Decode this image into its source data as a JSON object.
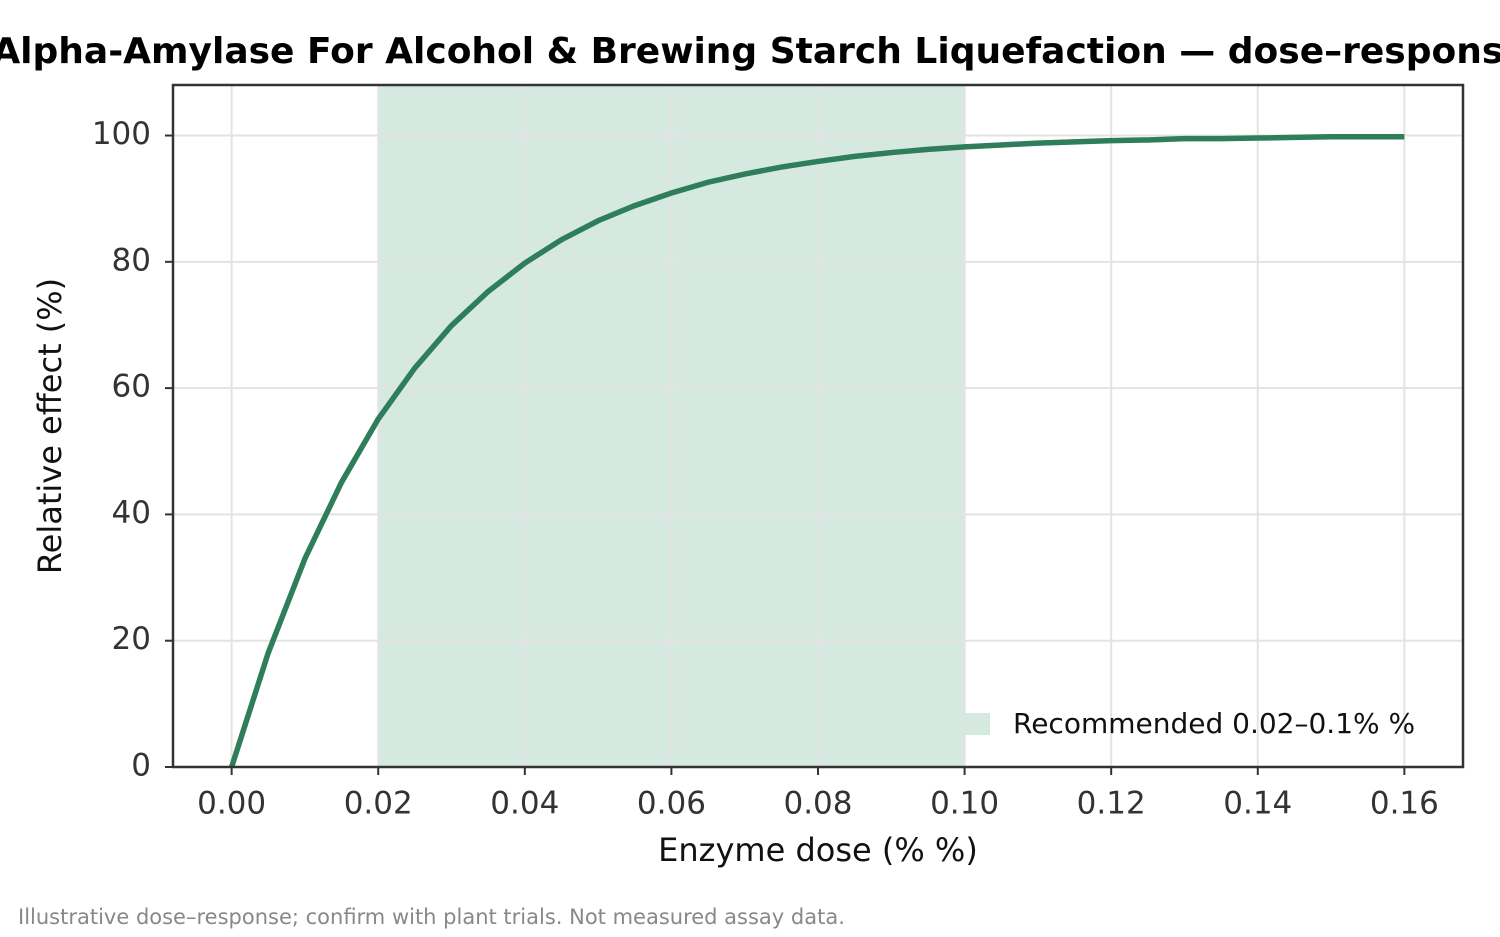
{
  "chart_data": {
    "type": "line",
    "title": "Alpha-Amylase For Alcohol & Brewing Starch Liquefaction — dose–response",
    "x_label": "Enzyme dose (% %)",
    "y_label": "Relative effect (%)",
    "footnote": "Illustrative dose–response; confirm with plant trials. Not measured assay data.",
    "x": [
      0,
      0.005,
      0.01,
      0.015,
      0.02,
      0.025,
      0.03,
      0.035,
      0.04,
      0.045,
      0.05,
      0.055,
      0.06,
      0.065,
      0.07,
      0.075,
      0.08,
      0.085,
      0.09,
      0.095,
      0.1,
      0.105,
      0.11,
      0.115,
      0.12,
      0.125,
      0.13,
      0.135,
      0.14,
      0.145,
      0.15,
      0.155,
      0.16
    ],
    "values": [
      0,
      18.1,
      33.0,
      45.1,
      55.1,
      63.2,
      69.9,
      75.3,
      79.8,
      83.5,
      86.5,
      88.9,
      90.9,
      92.6,
      93.9,
      95.0,
      95.9,
      96.7,
      97.3,
      97.8,
      98.2,
      98.5,
      98.8,
      99.0,
      99.2,
      99.3,
      99.5,
      99.5,
      99.6,
      99.7,
      99.8,
      99.8,
      99.8
    ],
    "color": "#2e7d5b",
    "band": {
      "label": "Recommended 0.02–0.1% %",
      "range": [
        0.02,
        0.1
      ],
      "color": "#d6e9e0"
    },
    "xlim": [
      -0.008,
      0.168
    ],
    "ylim": [
      0,
      108
    ],
    "xticks": [
      {
        "value": 0,
        "label": "0.00"
      },
      0.02,
      0.04,
      0.06,
      0.08,
      {
        "value": 0.1,
        "label": "0.10"
      },
      0.12,
      0.14,
      0.16
    ],
    "yticks": [
      0,
      20,
      40,
      60,
      80,
      100
    ],
    "grid": true,
    "legend": "lower right"
  }
}
